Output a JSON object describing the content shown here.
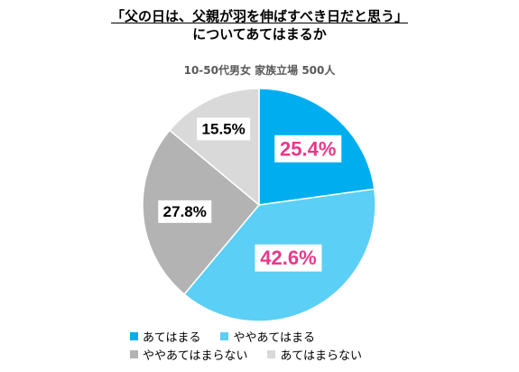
{
  "title": {
    "line1": "「父の日は、父親が羽を伸ばすべき日だと思う」",
    "line2": "についてあてはまるか"
  },
  "subtitle": "10-50代男女 家族立場 500人",
  "chart_data": {
    "type": "pie",
    "start_angle_deg": 0,
    "direction": "clockwise",
    "categories": [
      "あてはまる",
      "ややあてはまる",
      "ややあてはまらない",
      "あてはまらない"
    ],
    "values": [
      25.4,
      42.6,
      27.8,
      15.5
    ],
    "value_labels": [
      "25.4%",
      "42.6%",
      "27.8%",
      "15.5%"
    ],
    "colors": [
      "#00aeef",
      "#5bcff5",
      "#b3b3b3",
      "#d9d9d9"
    ],
    "label_colors": [
      "#e8388a",
      "#e8388a",
      "#000000",
      "#000000"
    ],
    "legend_position": "bottom"
  }
}
